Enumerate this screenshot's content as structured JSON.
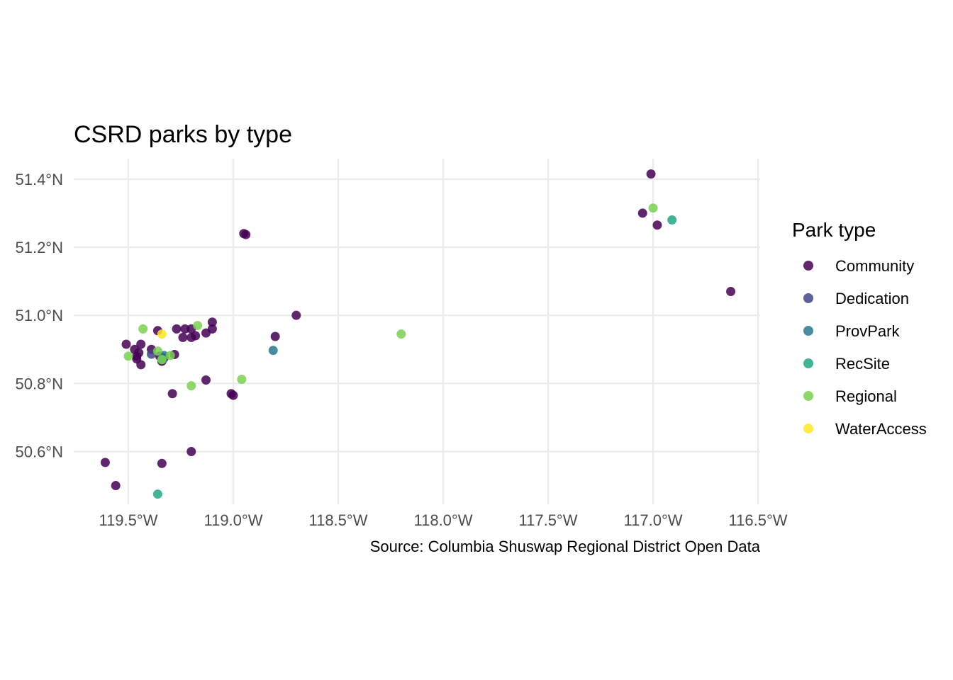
{
  "chart_data": {
    "type": "scatter",
    "title": "CSRD parks by type",
    "caption": "Source: Columbia Shuswap Regional District Open Data",
    "xlabel": "",
    "ylabel": "",
    "xlim": [
      -119.76,
      -116.49
    ],
    "ylim": [
      50.445,
      51.46
    ],
    "x_ticks": [
      -119.5,
      -119.0,
      -118.5,
      -118.0,
      -117.5,
      -117.0,
      -116.5
    ],
    "x_tick_labels": [
      "119.5°W",
      "119.0°W",
      "118.5°W",
      "118.0°W",
      "117.5°W",
      "117.0°W",
      "116.5°W"
    ],
    "y_ticks": [
      50.6,
      50.8,
      51.0,
      51.2,
      51.4
    ],
    "y_tick_labels": [
      "50.6°N",
      "50.8°N",
      "51.0°N",
      "51.2°N",
      "51.4°N"
    ],
    "grid": true,
    "legend_title": "Park type",
    "legend_position": "right",
    "series": [
      {
        "name": "Community",
        "color": "#440154",
        "points": [
          [
            -117.01,
            51.415
          ],
          [
            -117.05,
            51.3
          ],
          [
            -116.98,
            51.265
          ],
          [
            -116.63,
            51.07
          ],
          [
            -118.95,
            51.24
          ],
          [
            -118.94,
            51.237
          ],
          [
            -118.7,
            51.0
          ],
          [
            -118.8,
            50.938
          ],
          [
            -119.1,
            50.98
          ],
          [
            -119.1,
            50.96
          ],
          [
            -119.13,
            50.948
          ],
          [
            -119.18,
            50.94
          ],
          [
            -119.2,
            50.935
          ],
          [
            -119.2,
            50.96
          ],
          [
            -119.23,
            50.96
          ],
          [
            -119.27,
            50.96
          ],
          [
            -119.24,
            50.935
          ],
          [
            -119.36,
            50.955
          ],
          [
            -119.51,
            50.915
          ],
          [
            -119.44,
            50.915
          ],
          [
            -119.47,
            50.9
          ],
          [
            -119.39,
            50.9
          ],
          [
            -119.45,
            50.89
          ],
          [
            -119.46,
            50.88
          ],
          [
            -119.46,
            50.872
          ],
          [
            -119.35,
            50.88
          ],
          [
            -119.28,
            50.885
          ],
          [
            -119.33,
            50.875
          ],
          [
            -119.44,
            50.855
          ],
          [
            -119.34,
            50.865
          ],
          [
            -119.13,
            50.81
          ],
          [
            -119.29,
            50.77
          ],
          [
            -119.01,
            50.77
          ],
          [
            -119.0,
            50.765
          ],
          [
            -119.2,
            50.6
          ],
          [
            -119.34,
            50.565
          ],
          [
            -119.61,
            50.568
          ],
          [
            -119.56,
            50.5
          ]
        ]
      },
      {
        "name": "Dedication",
        "color": "#414487",
        "points": [
          [
            -119.39,
            50.886
          ]
        ]
      },
      {
        "name": "ProvPark",
        "color": "#2a788e",
        "points": [
          [
            -118.81,
            50.897
          ],
          [
            -119.33,
            50.882
          ]
        ]
      },
      {
        "name": "RecSite",
        "color": "#22a884",
        "points": [
          [
            -116.91,
            51.28
          ],
          [
            -119.36,
            50.475
          ],
          [
            -119.34,
            50.87
          ]
        ]
      },
      {
        "name": "Regional",
        "color": "#7ad151",
        "points": [
          [
            -117.0,
            51.315
          ],
          [
            -118.2,
            50.945
          ],
          [
            -119.17,
            50.97
          ],
          [
            -119.43,
            50.96
          ],
          [
            -119.5,
            50.88
          ],
          [
            -119.36,
            50.895
          ],
          [
            -119.3,
            50.882
          ],
          [
            -119.34,
            50.87
          ],
          [
            -119.2,
            50.793
          ],
          [
            -118.96,
            50.812
          ]
        ]
      },
      {
        "name": "WaterAccess",
        "color": "#fde725",
        "points": [
          [
            -119.34,
            50.945
          ]
        ]
      }
    ]
  }
}
